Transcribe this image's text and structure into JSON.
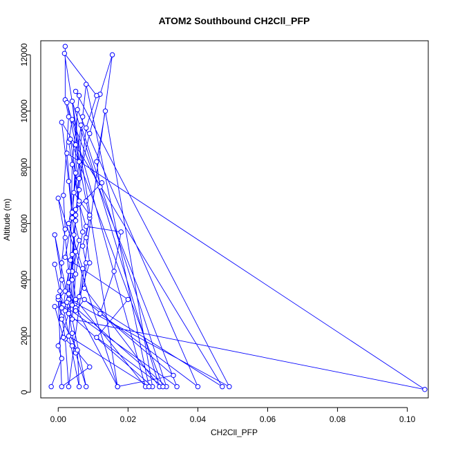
{
  "chart_data": {
    "type": "line",
    "title": "ATOM2 Southbound CH2Cll_PFP",
    "xlabel": "CH2Cll_PFP",
    "ylabel": "Altitude (m)",
    "xlim": [
      -0.005,
      0.106
    ],
    "ylim": [
      -200,
      12500
    ],
    "x_ticks": [
      "0.00",
      "0.02",
      "0.04",
      "0.06",
      "0.08",
      "0.10"
    ],
    "y_ticks": [
      "0",
      "2000",
      "4000",
      "6000",
      "8000",
      "10000",
      "12000"
    ],
    "grid": false,
    "legend": "none",
    "colors": {
      "series": "#0000ff",
      "axis": "#000000"
    },
    "series": [
      {
        "values": [
          [
            0.002,
            12300
          ],
          [
            0.002,
            10400
          ],
          [
            0.003,
            9800
          ],
          [
            0.0015,
            7000
          ],
          [
            0.002,
            5800
          ],
          [
            0.001,
            4600
          ],
          [
            0.0005,
            3300
          ],
          [
            0.001,
            2700
          ],
          [
            0.002,
            1900
          ],
          [
            0.003,
            200
          ],
          [
            0.0155,
            12000
          ],
          [
            0.012,
            10600
          ],
          [
            0.009,
            9200
          ],
          [
            0.006,
            7600
          ],
          [
            0.005,
            6300
          ],
          [
            0.004,
            4900
          ],
          [
            0.003,
            3500
          ],
          [
            0.017,
            200
          ],
          [
            0.0018,
            12050
          ],
          [
            0.011,
            10550
          ],
          [
            0.008,
            9400
          ],
          [
            0.006,
            7200
          ],
          [
            0.0045,
            5600
          ],
          [
            0.004,
            4300
          ],
          [
            0.005,
            3300
          ],
          [
            0.025,
            200
          ],
          [
            0.0025,
            10300
          ],
          [
            0.005,
            8800
          ],
          [
            0.008,
            6800
          ],
          [
            0.009,
            6200
          ],
          [
            0.007,
            5200
          ],
          [
            0.008,
            4600
          ],
          [
            0.0075,
            3700
          ],
          [
            0.029,
            200
          ],
          [
            0.004,
            10350
          ],
          [
            0.006,
            8200
          ],
          [
            0.003,
            6000
          ],
          [
            0.007,
            4400
          ],
          [
            0.006,
            3400
          ],
          [
            0.047,
            200
          ],
          [
            0.001,
            9600
          ],
          [
            0.003,
            7500
          ],
          [
            0.005,
            5000
          ],
          [
            0.004,
            3100
          ],
          [
            0.002,
            2900
          ],
          [
            0.027,
            200
          ],
          [
            0.0135,
            10000
          ],
          [
            0.011,
            8200
          ],
          [
            0.012,
            7300
          ],
          [
            0.0125,
            7450
          ],
          [
            0.005,
            6500
          ],
          [
            0.004,
            4000
          ],
          [
            0.003,
            2000
          ],
          [
            0.026,
            200
          ],
          [
            0.008,
            10950
          ],
          [
            0.007,
            9800
          ],
          [
            0.005,
            6100
          ],
          [
            0.003,
            3300
          ],
          [
            0.049,
            200
          ],
          [
            0.005,
            10700
          ],
          [
            0.006,
            10550
          ],
          [
            0.004,
            8100
          ],
          [
            0.0035,
            4700
          ],
          [
            0.0015,
            3100
          ],
          [
            0.034,
            200
          ],
          [
            0.004,
            9700
          ],
          [
            0.003,
            8900
          ],
          [
            0.006,
            6700
          ],
          [
            0.008,
            5900
          ],
          [
            0.018,
            5700
          ],
          [
            0.016,
            4300
          ],
          [
            0.012,
            2800
          ],
          [
            0.04,
            200
          ],
          [
            0.0055,
            10050
          ],
          [
            0.0045,
            7100
          ],
          [
            0.009,
            6300
          ],
          [
            0.008,
            5500
          ],
          [
            0.009,
            4600
          ],
          [
            0.005,
            3000
          ],
          [
            0.031,
            200
          ],
          [
            0.0065,
            9500
          ],
          [
            0.005,
            7800
          ],
          [
            0.004,
            6200
          ],
          [
            0.002,
            4800
          ],
          [
            0.02,
            3300
          ],
          [
            0.011,
            1950
          ],
          [
            0.03,
            200
          ],
          [
            0.0035,
            9000
          ],
          [
            0.006,
            6800
          ],
          [
            0.007,
            5700
          ],
          [
            0.005,
            4200
          ],
          [
            0.004,
            2600
          ],
          [
            0.105,
            100
          ],
          [
            0.0025,
            8500
          ],
          [
            0.004,
            6400
          ],
          [
            0.006,
            5400
          ],
          [
            0.003,
            3900
          ],
          [
            0.005,
            2900
          ],
          [
            0.0075,
            3300
          ],
          [
            0.033,
            600
          ],
          [
            0.017,
            200
          ],
          [
            0.0,
            6900
          ],
          [
            0.002,
            5500
          ],
          [
            0.003,
            4300
          ],
          [
            0.0025,
            3200
          ],
          [
            0.004,
            2100
          ],
          [
            0.005,
            1400
          ],
          [
            0.008,
            200
          ],
          [
            -0.001,
            5600
          ],
          [
            0.001,
            4000
          ],
          [
            0.002,
            3600
          ],
          [
            0.0,
            3300
          ],
          [
            0.001,
            2600
          ],
          [
            0.0055,
            1500
          ],
          [
            0.006,
            200
          ],
          [
            -0.001,
            4550
          ],
          [
            0.0005,
            3600
          ],
          [
            0.001,
            3000
          ],
          [
            -0.001,
            3050
          ],
          [
            0.0015,
            1950
          ],
          [
            0.004,
            1650
          ],
          [
            0.009,
            900
          ],
          [
            0.001,
            200
          ],
          [
            0.0,
            3400
          ],
          [
            0.003,
            2800
          ],
          [
            0.0,
            1650
          ],
          [
            0.001,
            1200
          ],
          [
            -0.002,
            200
          ]
        ]
      }
    ]
  }
}
